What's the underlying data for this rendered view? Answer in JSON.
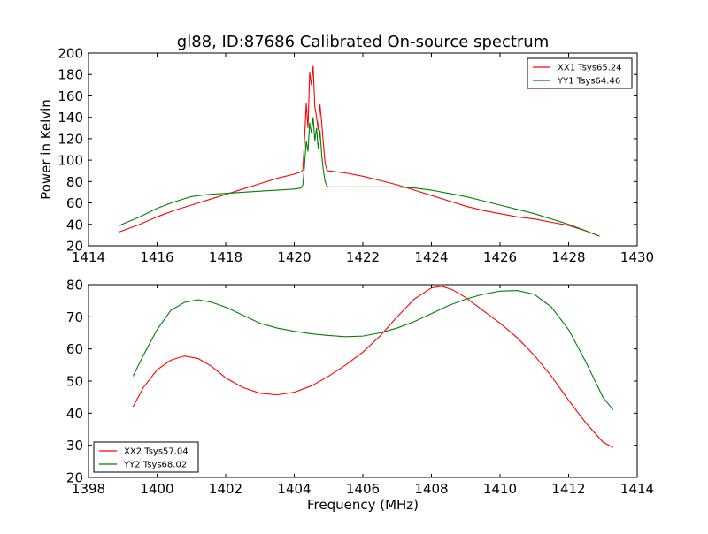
{
  "figure": {
    "title": "gl88, ID:87686 Calibrated On-source spectrum"
  },
  "chart_data": [
    {
      "type": "line",
      "title": "gl88, ID:87686 Calibrated On-source spectrum",
      "xlabel": "",
      "ylabel": "Power in Kelvin",
      "xlim": [
        1414,
        1430
      ],
      "ylim": [
        20,
        200
      ],
      "xticks": [
        1414,
        1416,
        1418,
        1420,
        1422,
        1424,
        1426,
        1428,
        1430
      ],
      "yticks": [
        20,
        40,
        60,
        80,
        100,
        120,
        140,
        160,
        180,
        200
      ],
      "x_tick_labels": [
        "1414",
        "1416",
        "1418",
        "1420",
        "1422",
        "1424",
        "1426",
        "1428",
        "1430"
      ],
      "y_tick_labels": [
        "20",
        "40",
        "60",
        "80",
        "100",
        "120",
        "140",
        "160",
        "180",
        "200"
      ],
      "grid": false,
      "legend_position": "top-right",
      "series": [
        {
          "name": "XX1 Tsys65.24",
          "color": "#ff0000",
          "x": [
            1414.9,
            1415.5,
            1416.0,
            1416.5,
            1417.0,
            1417.5,
            1418.0,
            1418.5,
            1419.0,
            1419.5,
            1420.0,
            1420.2,
            1420.25,
            1420.3,
            1420.35,
            1420.4,
            1420.45,
            1420.5,
            1420.55,
            1420.6,
            1420.65,
            1420.7,
            1420.75,
            1420.8,
            1420.85,
            1420.9,
            1420.95,
            1421.0,
            1421.5,
            1422.0,
            1422.5,
            1423.0,
            1423.5,
            1424.0,
            1424.5,
            1425.0,
            1425.5,
            1426.0,
            1426.5,
            1427.0,
            1427.5,
            1428.0,
            1428.5,
            1428.9
          ],
          "y": [
            33,
            40,
            47,
            53,
            58,
            63,
            68,
            73,
            78,
            83,
            87,
            89,
            91,
            120,
            153,
            130,
            182,
            170,
            188,
            150,
            140,
            128,
            152,
            135,
            115,
            97,
            91,
            90,
            88,
            85,
            81,
            77,
            72,
            67,
            62,
            57,
            53,
            50,
            47,
            45,
            42,
            39,
            34,
            29
          ]
        },
        {
          "name": "YY1 Tsys64.46",
          "color": "#008000",
          "x": [
            1414.9,
            1415.5,
            1416.0,
            1416.5,
            1417.0,
            1417.5,
            1418.0,
            1418.5,
            1419.0,
            1419.5,
            1420.0,
            1420.2,
            1420.25,
            1420.3,
            1420.35,
            1420.4,
            1420.45,
            1420.5,
            1420.55,
            1420.6,
            1420.65,
            1420.7,
            1420.75,
            1420.8,
            1420.85,
            1420.9,
            1420.95,
            1421.0,
            1421.5,
            1422.0,
            1422.5,
            1423.0,
            1423.5,
            1424.0,
            1424.5,
            1425.0,
            1425.5,
            1426.0,
            1426.5,
            1427.0,
            1427.5,
            1428.0,
            1428.5,
            1428.9
          ],
          "y": [
            39,
            47,
            55,
            61,
            66,
            68,
            69,
            70,
            71,
            72,
            73,
            74,
            77,
            95,
            118,
            108,
            135,
            125,
            140,
            118,
            130,
            110,
            128,
            105,
            90,
            80,
            76,
            75,
            75,
            75,
            75,
            75,
            74,
            72,
            69,
            66,
            62,
            58,
            54,
            50,
            45,
            40,
            34,
            29
          ]
        }
      ]
    },
    {
      "type": "line",
      "title": "",
      "xlabel": "Frequency (MHz)",
      "ylabel": "",
      "xlim": [
        1398,
        1414
      ],
      "ylim": [
        20,
        80
      ],
      "xticks": [
        1398,
        1400,
        1402,
        1404,
        1406,
        1408,
        1410,
        1412,
        1414
      ],
      "yticks": [
        20,
        30,
        40,
        50,
        60,
        70,
        80
      ],
      "x_tick_labels": [
        "1398",
        "1400",
        "1402",
        "1404",
        "1406",
        "1408",
        "1410",
        "1412",
        "1414"
      ],
      "y_tick_labels": [
        "20",
        "30",
        "40",
        "50",
        "60",
        "70",
        "80"
      ],
      "grid": false,
      "legend_position": "lower-left",
      "series": [
        {
          "name": "XX2 Tsys57.04",
          "color": "#ff0000",
          "x": [
            1399.3,
            1399.6,
            1400.0,
            1400.4,
            1400.8,
            1401.2,
            1401.6,
            1402.0,
            1402.5,
            1403.0,
            1403.5,
            1404.0,
            1404.5,
            1405.0,
            1405.5,
            1406.0,
            1406.5,
            1407.0,
            1407.5,
            1408.0,
            1408.3,
            1408.6,
            1409.0,
            1409.5,
            1410.0,
            1410.5,
            1411.0,
            1411.5,
            1412.0,
            1412.5,
            1413.0,
            1413.3
          ],
          "y": [
            42,
            48,
            53.5,
            56.5,
            57.8,
            57,
            54.5,
            51,
            48,
            46.2,
            45.7,
            46.5,
            48.5,
            51.5,
            55,
            59,
            64,
            70,
            75.5,
            79,
            79.5,
            78.5,
            76,
            72,
            68,
            63.5,
            58,
            51.5,
            44,
            37,
            31,
            29.3
          ]
        },
        {
          "name": "YY2 Tsys68.02",
          "color": "#008000",
          "x": [
            1399.3,
            1399.6,
            1400.0,
            1400.4,
            1400.8,
            1401.2,
            1401.6,
            1402.0,
            1402.5,
            1403.0,
            1403.5,
            1404.0,
            1404.5,
            1405.0,
            1405.5,
            1406.0,
            1406.5,
            1407.0,
            1407.5,
            1408.0,
            1408.5,
            1409.0,
            1409.5,
            1410.0,
            1410.5,
            1411.0,
            1411.5,
            1412.0,
            1412.5,
            1413.0,
            1413.3
          ],
          "y": [
            51.5,
            58,
            66,
            72,
            74.5,
            75.3,
            74.5,
            73,
            70.5,
            68,
            66.5,
            65.5,
            64.7,
            64.2,
            63.8,
            64,
            65,
            66.5,
            68.5,
            71,
            73.5,
            75.5,
            77,
            78,
            78.2,
            77,
            73,
            66,
            56,
            45,
            41
          ]
        }
      ]
    }
  ]
}
